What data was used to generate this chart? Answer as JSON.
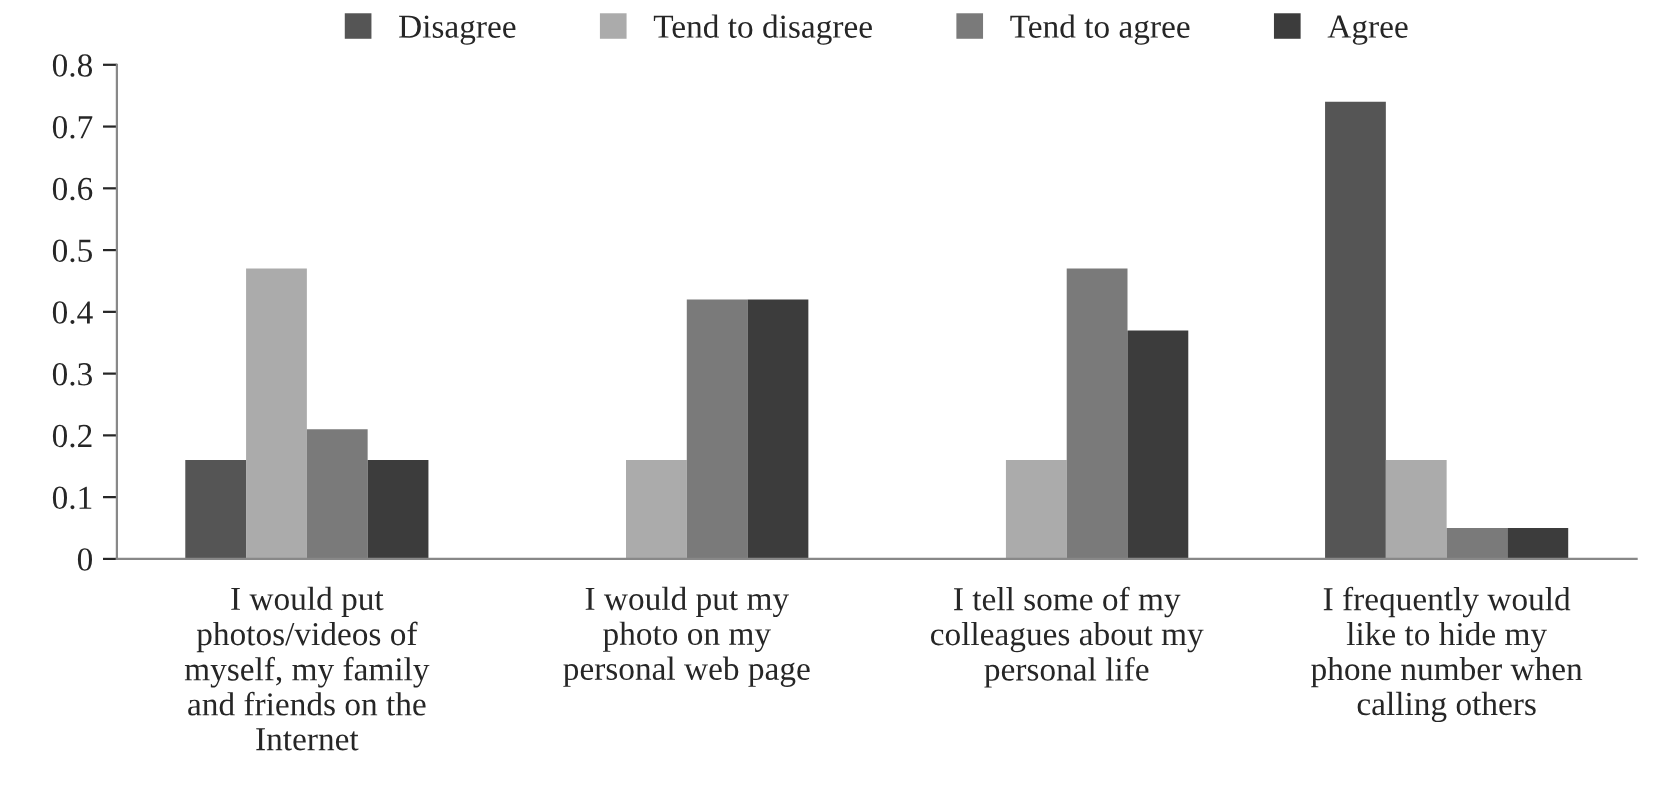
{
  "chart_data": {
    "type": "bar",
    "categories": [
      "I would put\nphotos/videos of\nmyself, my family\nand friends on the\nInternet",
      "I would put my\nphoto on my\npersonal web page",
      "I tell some of my\ncolleagues about my\npersonal life",
      "I frequently would\nlike to hide my\nphone number when\ncalling others"
    ],
    "series": [
      {
        "name": "Disagree",
        "color": "#555555",
        "values": [
          0.16,
          null,
          null,
          0.74
        ]
      },
      {
        "name": "Tend to disagree",
        "color": "#ababab",
        "values": [
          0.47,
          0.16,
          0.16,
          0.16
        ]
      },
      {
        "name": "Tend to agree",
        "color": "#7a7a7a",
        "values": [
          0.21,
          0.42,
          0.47,
          0.05
        ]
      },
      {
        "name": "Agree",
        "color": "#3c3c3c",
        "values": [
          0.16,
          0.42,
          0.37,
          0.05
        ]
      }
    ],
    "ylim": [
      0,
      0.8
    ],
    "yticks": [
      {
        "value": 0,
        "label": "0"
      },
      0.1,
      0.2,
      0.3,
      0.4,
      0.5,
      0.6,
      0.7,
      0.8
    ],
    "grid": false,
    "legend": "top"
  }
}
